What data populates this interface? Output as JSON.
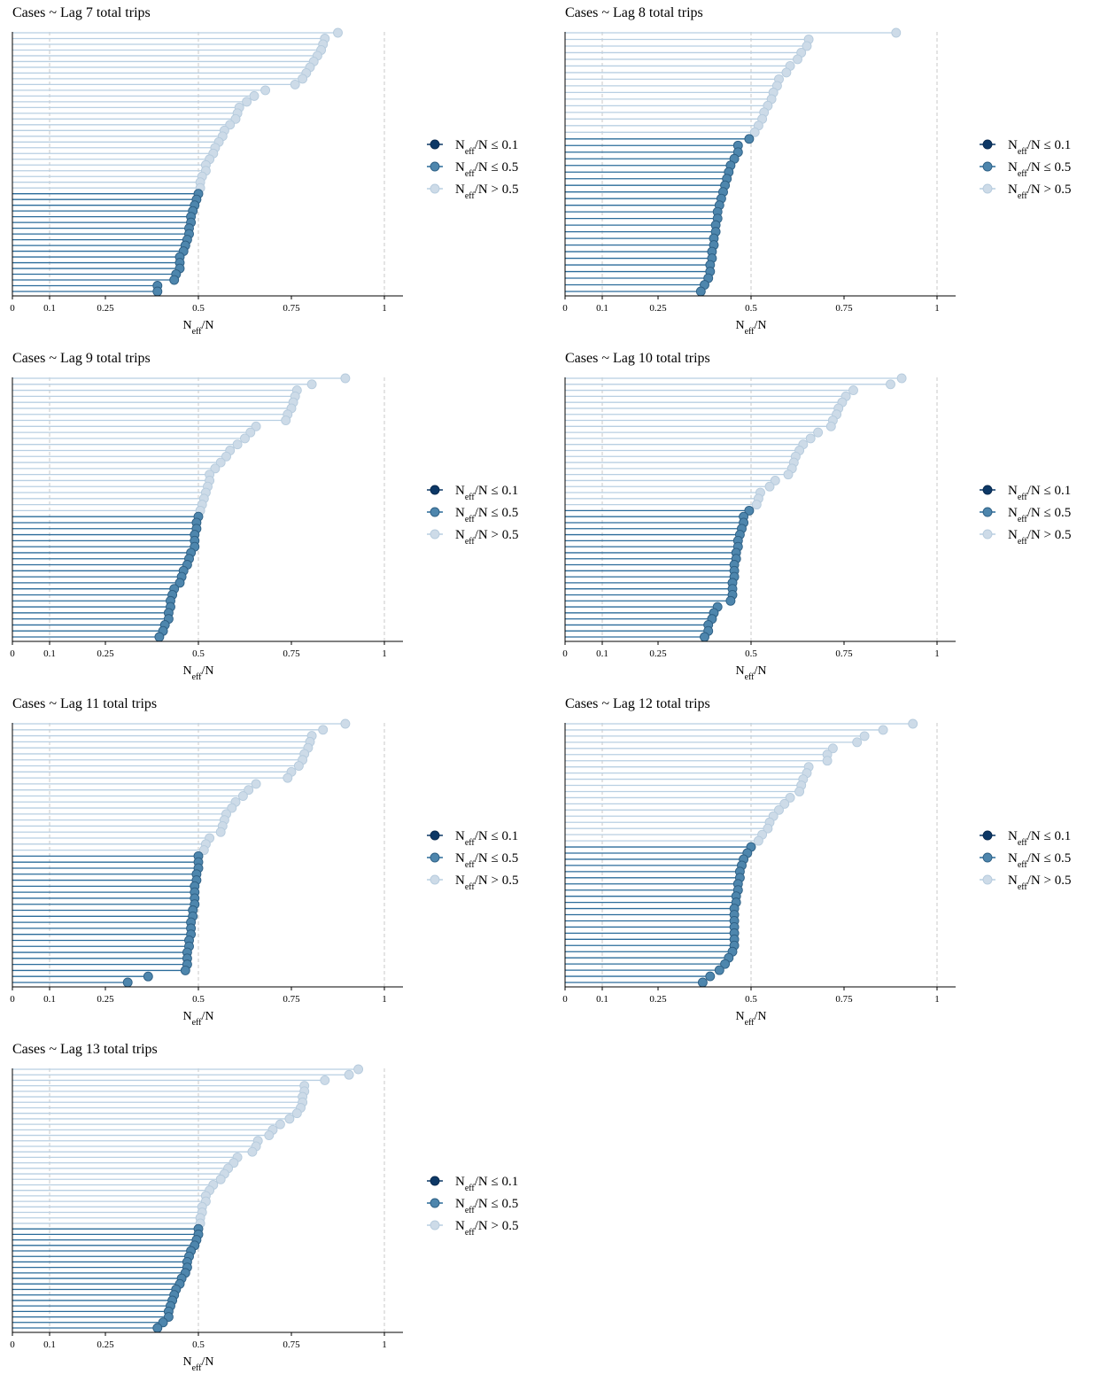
{
  "legend": {
    "items": [
      {
        "label_main": "N",
        "label_sub": "eff",
        "label_rest": "/N ≤ 0.1",
        "color": "#0d3866",
        "line": "#0d3866",
        "stroke": "#0a2a4f"
      },
      {
        "label_main": "N",
        "label_sub": "eff",
        "label_rest": "/N ≤ 0.5",
        "color": "#4e86ad",
        "line": "#2a6b9a",
        "stroke": "#2d5f84"
      },
      {
        "label_main": "N",
        "label_sub": "eff",
        "label_rest": "/N > 0.5",
        "color": "#cddbe8",
        "line": "#b8cfe2",
        "stroke": "#b6cbdd"
      }
    ]
  },
  "axis": {
    "xlabel_main": "N",
    "xlabel_sub": "eff",
    "xlabel_rest": "/N",
    "ticks": [
      {
        "v": 0,
        "label": "0"
      },
      {
        "v": 0.1,
        "label": "0.1"
      },
      {
        "v": 0.25,
        "label": "0.25"
      },
      {
        "v": 0.5,
        "label": "0.5"
      },
      {
        "v": 0.75,
        "label": "0.75"
      },
      {
        "v": 1,
        "label": "1"
      }
    ],
    "gridlines": [
      0.1,
      0.5,
      1
    ],
    "xlim": [
      0,
      1.05
    ]
  },
  "chart_data": [
    {
      "type": "lollipop",
      "title": "Cases ~ Lag 7 total trips",
      "xlabel": "Neff/N",
      "legend_position": "right",
      "values": [
        0.875,
        0.84,
        0.835,
        0.83,
        0.82,
        0.81,
        0.8,
        0.79,
        0.78,
        0.76,
        0.68,
        0.65,
        0.63,
        0.61,
        0.605,
        0.6,
        0.585,
        0.57,
        0.565,
        0.555,
        0.545,
        0.54,
        0.53,
        0.52,
        0.52,
        0.51,
        0.505,
        0.505,
        0.5,
        0.495,
        0.49,
        0.485,
        0.48,
        0.48,
        0.475,
        0.475,
        0.47,
        0.465,
        0.46,
        0.45,
        0.45,
        0.45,
        0.44,
        0.435,
        0.39,
        0.39
      ]
    },
    {
      "type": "lollipop",
      "title": "Cases ~ Lag 8 total trips",
      "xlabel": "Neff/N",
      "legend_position": "right",
      "values": [
        0.89,
        0.655,
        0.65,
        0.635,
        0.625,
        0.605,
        0.595,
        0.575,
        0.57,
        0.56,
        0.555,
        0.545,
        0.535,
        0.53,
        0.52,
        0.51,
        0.495,
        0.465,
        0.465,
        0.455,
        0.445,
        0.44,
        0.435,
        0.43,
        0.425,
        0.42,
        0.415,
        0.41,
        0.41,
        0.405,
        0.405,
        0.4,
        0.4,
        0.395,
        0.395,
        0.39,
        0.39,
        0.385,
        0.375,
        0.365
      ]
    },
    {
      "type": "lollipop",
      "title": "Cases ~ Lag 9 total trips",
      "xlabel": "Neff/N",
      "legend_position": "right",
      "values": [
        0.895,
        0.805,
        0.765,
        0.76,
        0.755,
        0.75,
        0.74,
        0.735,
        0.655,
        0.64,
        0.625,
        0.605,
        0.585,
        0.575,
        0.56,
        0.545,
        0.53,
        0.53,
        0.525,
        0.52,
        0.515,
        0.51,
        0.505,
        0.5,
        0.495,
        0.495,
        0.49,
        0.49,
        0.49,
        0.48,
        0.475,
        0.47,
        0.46,
        0.455,
        0.45,
        0.435,
        0.43,
        0.425,
        0.425,
        0.42,
        0.42,
        0.41,
        0.405,
        0.395
      ]
    },
    {
      "type": "lollipop",
      "title": "Cases ~ Lag 10 total trips",
      "xlabel": "Neff/N",
      "legend_position": "right",
      "values": [
        0.905,
        0.875,
        0.775,
        0.755,
        0.745,
        0.735,
        0.73,
        0.72,
        0.715,
        0.68,
        0.66,
        0.64,
        0.63,
        0.62,
        0.615,
        0.61,
        0.6,
        0.565,
        0.55,
        0.525,
        0.52,
        0.515,
        0.495,
        0.48,
        0.48,
        0.475,
        0.47,
        0.465,
        0.465,
        0.46,
        0.46,
        0.455,
        0.455,
        0.455,
        0.45,
        0.45,
        0.45,
        0.445,
        0.41,
        0.4,
        0.395,
        0.385,
        0.385,
        0.375
      ]
    },
    {
      "type": "lollipop",
      "title": "Cases ~ Lag 11 total trips",
      "xlabel": "Neff/N",
      "legend_position": "right",
      "values": [
        0.895,
        0.835,
        0.805,
        0.8,
        0.795,
        0.785,
        0.78,
        0.77,
        0.75,
        0.74,
        0.655,
        0.635,
        0.62,
        0.6,
        0.59,
        0.575,
        0.57,
        0.565,
        0.56,
        0.53,
        0.52,
        0.515,
        0.5,
        0.5,
        0.5,
        0.495,
        0.495,
        0.49,
        0.49,
        0.49,
        0.49,
        0.485,
        0.485,
        0.48,
        0.48,
        0.48,
        0.475,
        0.475,
        0.47,
        0.47,
        0.47,
        0.465,
        0.365,
        0.31
      ]
    },
    {
      "type": "lollipop",
      "title": "Cases ~ Lag 12 total trips",
      "xlabel": "Neff/N",
      "legend_position": "right",
      "values": [
        0.935,
        0.855,
        0.805,
        0.785,
        0.72,
        0.705,
        0.705,
        0.655,
        0.65,
        0.64,
        0.635,
        0.63,
        0.605,
        0.59,
        0.575,
        0.56,
        0.55,
        0.545,
        0.53,
        0.52,
        0.5,
        0.49,
        0.48,
        0.475,
        0.47,
        0.47,
        0.465,
        0.465,
        0.46,
        0.46,
        0.455,
        0.455,
        0.455,
        0.455,
        0.455,
        0.455,
        0.455,
        0.45,
        0.44,
        0.43,
        0.415,
        0.39,
        0.37
      ]
    },
    {
      "type": "lollipop",
      "title": "Cases ~ Lag 13 total trips",
      "xlabel": "Neff/N",
      "legend_position": "right",
      "values": [
        0.93,
        0.905,
        0.84,
        0.785,
        0.785,
        0.78,
        0.78,
        0.775,
        0.765,
        0.745,
        0.72,
        0.7,
        0.69,
        0.66,
        0.655,
        0.645,
        0.605,
        0.595,
        0.58,
        0.57,
        0.56,
        0.54,
        0.53,
        0.52,
        0.52,
        0.51,
        0.51,
        0.505,
        0.505,
        0.5,
        0.5,
        0.495,
        0.49,
        0.48,
        0.475,
        0.47,
        0.47,
        0.465,
        0.455,
        0.45,
        0.44,
        0.435,
        0.43,
        0.425,
        0.42,
        0.42,
        0.405,
        0.39
      ]
    }
  ]
}
